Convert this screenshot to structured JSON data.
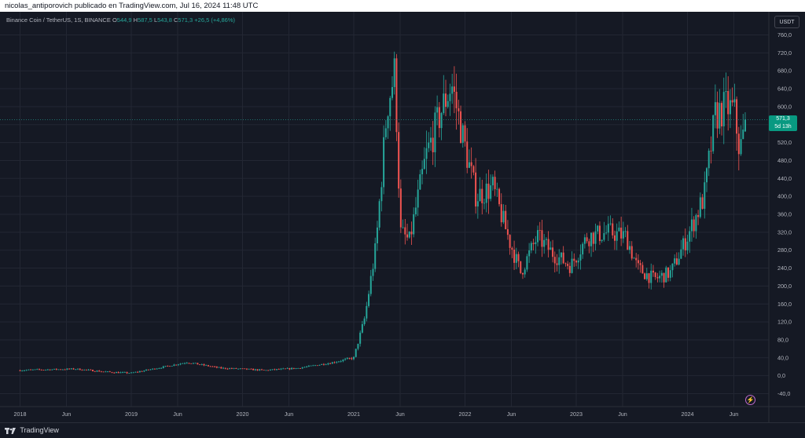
{
  "header": {
    "publisher_line": "nicolas_antiporovich publicado en TradingView.com, Jul 16, 2024 11:48 UTC"
  },
  "legend": {
    "symbol": "Binance Coin / TetherUS, 1S, BINANCE",
    "o_label": "O",
    "o_value": "544,9",
    "h_label": "H",
    "h_value": "587,5",
    "l_label": "L",
    "l_value": "543,8",
    "c_label": "C",
    "c_value": "571,3",
    "change": "+26,5 (+4,86%)"
  },
  "toolbar": {
    "currency_label": "USDT"
  },
  "price_tag": {
    "price": "571,3",
    "countdown": "5d 13h"
  },
  "footer": {
    "brand": "TradingView"
  },
  "colors": {
    "up": "#26a69a",
    "down": "#ef5350",
    "background": "#151924",
    "grid": "#232733",
    "accent_tag": "#089981"
  },
  "chart_data": {
    "type": "candlestick",
    "interval": "1 week",
    "symbol": "BNBUSDT",
    "ylim": [
      -60,
      780
    ],
    "y_ticks": [
      "-40,0",
      "0,0",
      "40,0",
      "80,0",
      "120,0",
      "160,0",
      "200,0",
      "240,0",
      "280,0",
      "320,0",
      "360,0",
      "400,0",
      "440,0",
      "480,0",
      "520,0",
      "560,0",
      "600,0",
      "640,0",
      "680,0",
      "720,0",
      "760,0"
    ],
    "y_tick_values": [
      -40,
      0,
      40,
      80,
      120,
      160,
      200,
      240,
      280,
      320,
      360,
      400,
      440,
      480,
      520,
      560,
      600,
      640,
      680,
      720,
      760
    ],
    "x_ticks": [
      "2018",
      "Jun",
      "2019",
      "Jun",
      "2020",
      "Jun",
      "2021",
      "Jun",
      "2022",
      "Jun",
      "2023",
      "Jun",
      "2024",
      "Jun"
    ],
    "x_tick_dates": [
      2018.0,
      2018.417,
      2019.0,
      2019.417,
      2020.0,
      2020.417,
      2021.0,
      2021.417,
      2022.0,
      2022.417,
      2023.0,
      2023.417,
      2024.0,
      2024.417
    ],
    "last_price": 571.3,
    "approx_closes": [
      {
        "t": 2018.0,
        "v": 12
      },
      {
        "t": 2018.1,
        "v": 13
      },
      {
        "t": 2018.3,
        "v": 14
      },
      {
        "t": 2018.5,
        "v": 15
      },
      {
        "t": 2018.8,
        "v": 8
      },
      {
        "t": 2019.0,
        "v": 6
      },
      {
        "t": 2019.3,
        "v": 20
      },
      {
        "t": 2019.5,
        "v": 30
      },
      {
        "t": 2019.8,
        "v": 17
      },
      {
        "t": 2020.0,
        "v": 15
      },
      {
        "t": 2020.2,
        "v": 12
      },
      {
        "t": 2020.5,
        "v": 17
      },
      {
        "t": 2020.8,
        "v": 29
      },
      {
        "t": 2021.0,
        "v": 40
      },
      {
        "t": 2021.1,
        "v": 130
      },
      {
        "t": 2021.2,
        "v": 290
      },
      {
        "t": 2021.3,
        "v": 600
      },
      {
        "t": 2021.37,
        "v": 680
      },
      {
        "t": 2021.42,
        "v": 320
      },
      {
        "t": 2021.5,
        "v": 300
      },
      {
        "t": 2021.65,
        "v": 490
      },
      {
        "t": 2021.8,
        "v": 600
      },
      {
        "t": 2021.88,
        "v": 650
      },
      {
        "t": 2022.0,
        "v": 510
      },
      {
        "t": 2022.1,
        "v": 400
      },
      {
        "t": 2022.25,
        "v": 420
      },
      {
        "t": 2022.4,
        "v": 300
      },
      {
        "t": 2022.5,
        "v": 230
      },
      {
        "t": 2022.65,
        "v": 310
      },
      {
        "t": 2022.8,
        "v": 270
      },
      {
        "t": 2022.95,
        "v": 245
      },
      {
        "t": 2023.1,
        "v": 310
      },
      {
        "t": 2023.3,
        "v": 320
      },
      {
        "t": 2023.45,
        "v": 310
      },
      {
        "t": 2023.55,
        "v": 240
      },
      {
        "t": 2023.7,
        "v": 215
      },
      {
        "t": 2023.85,
        "v": 230
      },
      {
        "t": 2024.0,
        "v": 310
      },
      {
        "t": 2024.15,
        "v": 400
      },
      {
        "t": 2024.25,
        "v": 580
      },
      {
        "t": 2024.35,
        "v": 600
      },
      {
        "t": 2024.42,
        "v": 590
      },
      {
        "t": 2024.47,
        "v": 500
      },
      {
        "t": 2024.53,
        "v": 571.3
      }
    ]
  }
}
